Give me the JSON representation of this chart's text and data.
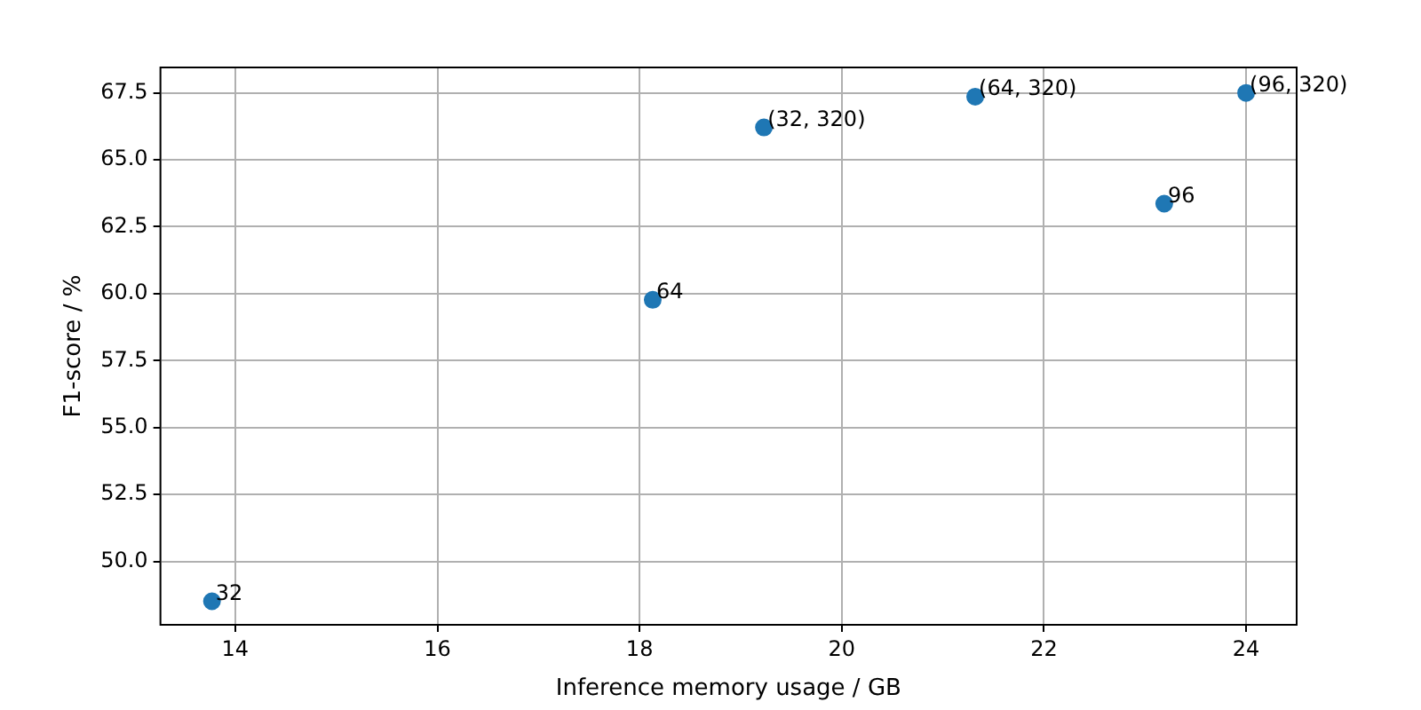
{
  "chart_data": {
    "type": "scatter",
    "xlabel": "Inference memory usage / GB",
    "ylabel": "F1-score / %",
    "x": [
      13.77,
      18.13,
      23.19,
      19.23,
      21.32,
      24.0
    ],
    "series": [
      {
        "color": "#1f77b4",
        "values": [
          48.51,
          59.77,
          63.36,
          66.21,
          67.36,
          67.5
        ]
      }
    ],
    "annotations": [
      {
        "text": "32",
        "x": 13.77,
        "y": 48.51
      },
      {
        "text": "64",
        "x": 18.13,
        "y": 59.77
      },
      {
        "text": "96",
        "x": 23.19,
        "y": 63.36
      },
      {
        "text": "(32, 320)",
        "x": 19.23,
        "y": 66.21
      },
      {
        "text": "(64, 320)",
        "x": 21.32,
        "y": 67.36
      },
      {
        "text": "(96, 320)",
        "x": 24.0,
        "y": 67.5
      }
    ],
    "xlim": [
      13.26,
      24.5
    ],
    "ylim": [
      47.63,
      68.45
    ],
    "xticks": [
      14,
      16,
      18,
      20,
      22,
      24
    ],
    "yticks": [
      {
        "value": 50,
        "label": "50.0"
      },
      {
        "value": 52.5,
        "label": "52.5"
      },
      {
        "value": 55,
        "label": "55.0"
      },
      {
        "value": 57.5,
        "label": "57.5"
      },
      {
        "value": 60,
        "label": "60.0"
      },
      {
        "value": 62.5,
        "label": "62.5"
      },
      {
        "value": 65,
        "label": "65.0"
      },
      {
        "value": 67.5,
        "label": "67.5"
      }
    ],
    "grid": true,
    "marker": "circle",
    "legend": false
  }
}
